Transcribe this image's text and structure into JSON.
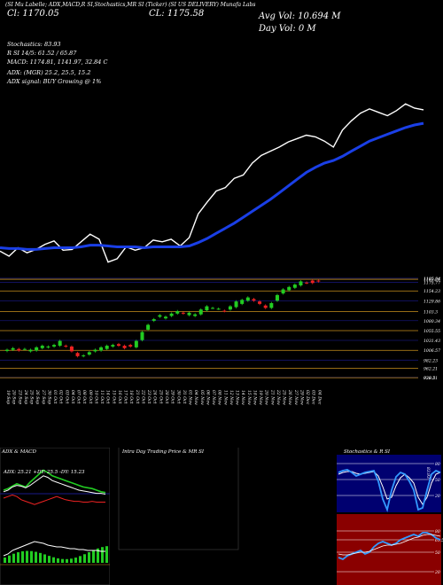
{
  "header": {
    "line1": "(SI Mu Labelle; ADX,MACD,R  SI,Stochastics,MR  SI (Ticker) (SI US DELIVERY) Munafa Labs",
    "line2_left": "Cl: 1170.05",
    "line2_mid": "CL: 1175.58",
    "avg_vol": "Avg Vol: 10.694  M",
    "day_vol": "Day Vol: 0   M",
    "stoch": "Stochastics: 83.93",
    "rsi": "R      SI 14/5: 61.52  / 65.87",
    "macd": "MACD: 1174.81, 1141.97, 32.84   C",
    "adx": "ADX:                             (MGR) 25.2, 25.5, 15.2",
    "adx_signal": "ADX  signal:                        BUY Growing @ 1%"
  },
  "colors": {
    "price_line": "#ffffff",
    "ma_line": "#1a3fe6",
    "candle_up": "#22cc22",
    "candle_down": "#ee2222",
    "level_line": "#c8901e",
    "grid_blue": "#14146e",
    "adx_plus": "#22cc22",
    "adx_minus": "#ee2222",
    "adx_line": "#ffffff",
    "stoch_bg": "#000070",
    "rsi_bg": "#8a0000",
    "stoch_line": "#3399ff"
  },
  "chart_data": [
    {
      "type": "line",
      "series": [
        {
          "values": [
            1008,
            1002,
            1012,
            1006,
            1010,
            1016,
            1020,
            1009,
            1010,
            1019,
            1028,
            1022,
            995,
            999,
            1013,
            1009,
            1012,
            1021,
            1019,
            1022,
            1014,
            1024,
            1052,
            1066,
            1079,
            1083,
            1094,
            1098,
            1112,
            1121,
            1126,
            1131,
            1137,
            1141,
            1145,
            1143,
            1138,
            1131,
            1151,
            1162,
            1171,
            1176,
            1172,
            1168,
            1174,
            1182,
            1177,
            1175
          ]
        },
        {
          "values": [
            1012,
            1011,
            1011,
            1010,
            1010,
            1011,
            1012,
            1012,
            1012,
            1013,
            1015,
            1015,
            1014,
            1013,
            1013,
            1013,
            1012,
            1013,
            1013,
            1013,
            1013,
            1014,
            1018,
            1023,
            1029,
            1035,
            1041,
            1048,
            1055,
            1062,
            1069,
            1077,
            1085,
            1093,
            1101,
            1107,
            1112,
            1115,
            1120,
            1126,
            1132,
            1138,
            1142,
            1146,
            1150,
            1154,
            1157,
            1159
          ]
        }
      ]
    },
    {
      "type": "candlestick",
      "x": [
        "19 Sep",
        "20 Sep",
        "23 Sep",
        "24 Sep",
        "25 Sep",
        "26 Sep",
        "27 Sep",
        "30 Sep",
        "01 Oct",
        "02 Oct",
        "03 Oct",
        "04 Oct",
        "07 Oct",
        "08 Oct",
        "09 Oct",
        "10 Oct",
        "11 Oct",
        "14 Oct",
        "15 Oct",
        "16 Oct",
        "17 Oct",
        "18 Oct",
        "21 Oct",
        "22 Oct",
        "23 Oct",
        "24 Oct",
        "25 Oct",
        "28 Oct",
        "29 Oct",
        "30 Oct",
        "31 Oct",
        "01 Nov",
        "04 Nov",
        "05 Nov",
        "06 Nov",
        "07 Nov",
        "08 Nov",
        "11 Nov",
        "12 Nov",
        "13 Nov",
        "14 Nov",
        "15 Nov",
        "18 Nov",
        "19 Nov",
        "20 Nov",
        "21 Nov",
        "22 Nov",
        "25 Nov",
        "26 Nov",
        "27 Nov",
        "29 Nov",
        "02 Dec",
        "03 Dec",
        "04 Dec"
      ],
      "open": [
        1005,
        1008,
        1010,
        1010,
        1004,
        1006,
        1012,
        1014,
        1016,
        1018,
        1018,
        1016,
        1000,
        992,
        996,
        1004,
        1006,
        1010,
        1016,
        1022,
        1018,
        1020,
        1014,
        1032,
        1058,
        1080,
        1090,
        1086,
        1092,
        1098,
        1100,
        1094,
        1092,
        1096,
        1106,
        1112,
        1110,
        1105,
        1108,
        1114,
        1122,
        1130,
        1134,
        1128,
        1118,
        1112,
        1130,
        1148,
        1156,
        1162,
        1168,
        1175,
        1180,
        1180
      ],
      "close": [
        1008,
        1012,
        1006,
        1010,
        1008,
        1014,
        1018,
        1016,
        1020,
        1030,
        1016,
        1004,
        992,
        994,
        1002,
        1008,
        1014,
        1018,
        1020,
        1018,
        1012,
        1016,
        1030,
        1052,
        1070,
        1084,
        1094,
        1090,
        1098,
        1104,
        1098,
        1100,
        1096,
        1108,
        1116,
        1112,
        1110,
        1104,
        1116,
        1128,
        1132,
        1138,
        1130,
        1122,
        1112,
        1124,
        1144,
        1158,
        1164,
        1170,
        1178,
        1174,
        1174,
        1178
      ],
      "levels": [
        1185.84,
        1183.26,
        1175.77,
        1154.23,
        1129.86,
        1103.3,
        1080.34,
        1055.55,
        1031.43,
        1006.57,
        982.23,
        962.21,
        939.2,
        938.51
      ],
      "level_labels": [
        "1185.84",
        "1183.26",
        "1175.77",
        "1154.23",
        "1129.86",
        "1103.3",
        "1080.34",
        "1055.55",
        "1031.43",
        "1006.57",
        "982.23",
        "962.21",
        "939.2",
        "938.51"
      ]
    }
  ],
  "panels": {
    "adx_macd": {
      "title": "ADX  & MACD",
      "reading": "ADX: 25.21  +DY: 25.5  -DY: 15.23"
    },
    "intraday": {
      "title": "Intra  Day Trading Price  & MR          SI"
    },
    "stoch_rsi": {
      "title": "Stochastics & R          SI",
      "stoch_labels": [
        "80",
        "50",
        "20"
      ],
      "rsi_labels": [
        "80",
        "61.52",
        "50",
        "20"
      ],
      "stoch_value": "83.93"
    }
  }
}
